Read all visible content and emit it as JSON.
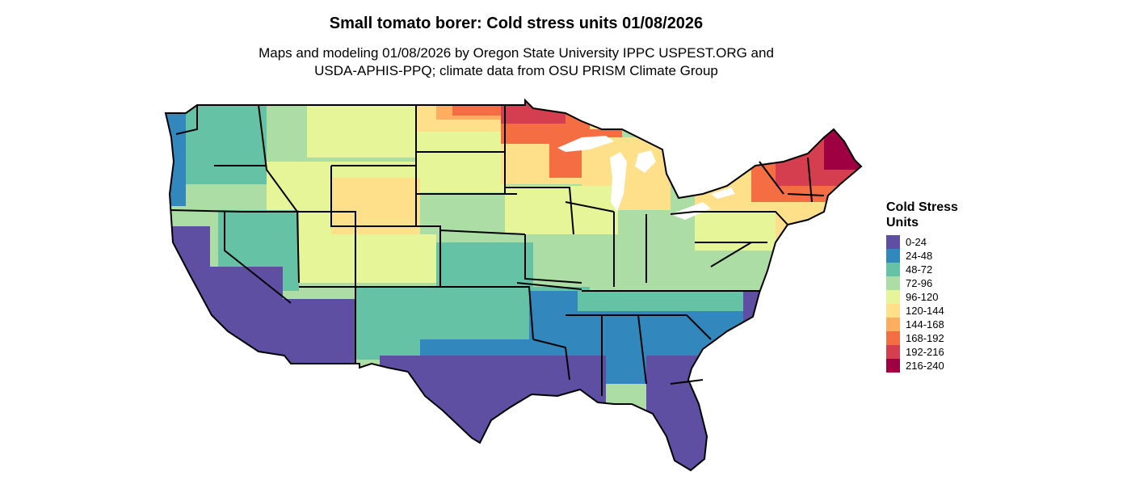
{
  "title": "Small tomato borer: Cold stress units 01/08/2026",
  "subtitle_line1": "Maps and modeling 01/08/2026 by Oregon State University IPPC USPEST.ORG and",
  "subtitle_line2": "USDA-APHIS-PPQ; climate data from OSU PRISM Climate Group",
  "legend": {
    "title": "Cold Stress Units",
    "items": [
      {
        "label": "0-24",
        "color": "#5e4fa2"
      },
      {
        "label": "24-48",
        "color": "#3288bd"
      },
      {
        "label": "48-72",
        "color": "#66c2a5"
      },
      {
        "label": "72-96",
        "color": "#abdda4"
      },
      {
        "label": "96-120",
        "color": "#e6f598"
      },
      {
        "label": "120-144",
        "color": "#fee08b"
      },
      {
        "label": "144-168",
        "color": "#fdae61"
      },
      {
        "label": "168-192",
        "color": "#f46d43"
      },
      {
        "label": "192-216",
        "color": "#d53e4f"
      },
      {
        "label": "216-240",
        "color": "#9e0142"
      }
    ]
  }
}
